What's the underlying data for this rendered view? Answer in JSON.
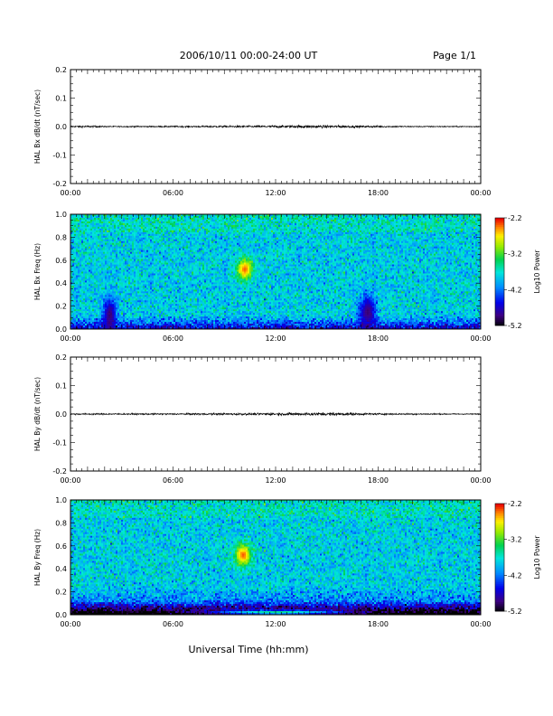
{
  "header": {
    "title": "2006/10/11   00:00-24:00 UT",
    "page": "Page 1/1"
  },
  "chart_data": [
    {
      "type": "line",
      "panel": "bx-dbdt",
      "ylabel": "HAL Bx dB/dt (nT/sec)",
      "ylim": [
        -0.2,
        0.2
      ],
      "y_ticks": [
        "0.2",
        "0.1",
        "0.0",
        "-0.1",
        "-0.2"
      ],
      "x_ticks": [
        "00:00",
        "06:00",
        "12:00",
        "18:00",
        "00:00"
      ],
      "xlim_hours": [
        0,
        24
      ],
      "series": [
        {
          "x_hours": [
            0,
            1,
            2,
            3,
            4,
            5,
            6,
            7,
            8,
            9,
            10,
            11,
            12,
            13,
            14,
            15,
            16,
            17,
            18,
            19,
            20,
            21,
            22,
            23,
            24
          ],
          "noise_amplitude": [
            0.004,
            0.006,
            0.003,
            0.003,
            0.004,
            0.003,
            0.004,
            0.004,
            0.005,
            0.005,
            0.006,
            0.006,
            0.007,
            0.008,
            0.009,
            0.008,
            0.007,
            0.006,
            0.005,
            0.004,
            0.003,
            0.003,
            0.003,
            0.003,
            0.003
          ],
          "color": "#000000"
        }
      ]
    },
    {
      "type": "heatmap",
      "panel": "bx-freq",
      "ylabel": "HAL Bx Freq (Hz)",
      "ylim": [
        0.0,
        1.0
      ],
      "y_ticks": [
        "1.0",
        "0.8",
        "0.6",
        "0.4",
        "0.2",
        "0.0"
      ],
      "x_ticks": [
        "00:00",
        "06:00",
        "12:00",
        "18:00",
        "00:00"
      ],
      "xlim_hours": [
        0,
        24
      ],
      "colorbar": {
        "label": "Log10 Power",
        "ticks": [
          "-2.2",
          "-3.2",
          "-4.2",
          "-5.2"
        ],
        "range": [
          -5.2,
          -2.2
        ]
      },
      "base_level": -3.8,
      "features": [
        {
          "t_hours": 10.2,
          "f_hz": 0.52,
          "dt": 0.45,
          "df": 0.09,
          "level": -2.3
        },
        {
          "t_hours": 2.3,
          "f_hz": 0.12,
          "dt": 0.4,
          "df": 0.15,
          "level": -5.0
        },
        {
          "t_hours": 17.4,
          "f_hz": 0.15,
          "dt": 0.5,
          "df": 0.15,
          "level": -5.0
        }
      ]
    },
    {
      "type": "line",
      "panel": "by-dbdt",
      "ylabel": "HAL By dB/dt (nT/sec)",
      "ylim": [
        -0.2,
        0.2
      ],
      "y_ticks": [
        "0.2",
        "0.1",
        "0.0",
        "-0.1",
        "-0.2"
      ],
      "x_ticks": [
        "00:00",
        "06:00",
        "12:00",
        "18:00",
        "00:00"
      ],
      "xlim_hours": [
        0,
        24
      ],
      "series": [
        {
          "x_hours": [
            0,
            1,
            2,
            3,
            4,
            5,
            6,
            7,
            8,
            9,
            10,
            11,
            12,
            13,
            14,
            15,
            16,
            17,
            18,
            19,
            20,
            21,
            22,
            23,
            24
          ],
          "noise_amplitude": [
            0.004,
            0.005,
            0.004,
            0.004,
            0.004,
            0.004,
            0.004,
            0.005,
            0.005,
            0.005,
            0.006,
            0.006,
            0.007,
            0.008,
            0.009,
            0.009,
            0.007,
            0.006,
            0.005,
            0.004,
            0.004,
            0.004,
            0.003,
            0.003,
            0.003
          ],
          "color": "#000000"
        }
      ]
    },
    {
      "type": "heatmap",
      "panel": "by-freq",
      "ylabel": "HAL By Freq (Hz)",
      "ylim": [
        0.0,
        1.0
      ],
      "y_ticks": [
        "1.0",
        "0.8",
        "0.6",
        "0.4",
        "0.2",
        "0.0"
      ],
      "x_ticks": [
        "00:00",
        "06:00",
        "12:00",
        "18:00",
        "00:00"
      ],
      "xlim_hours": [
        0,
        24
      ],
      "colorbar": {
        "label": "Log10 Power",
        "ticks": [
          "-2.2",
          "-3.2",
          "-4.2",
          "-5.2"
        ],
        "range": [
          -5.2,
          -2.2
        ]
      },
      "base_level": -3.8,
      "features": [
        {
          "t_hours": 10.1,
          "f_hz": 0.52,
          "dt": 0.45,
          "df": 0.09,
          "level": -2.3
        },
        {
          "t_hours": 12.0,
          "f_hz": 0.02,
          "dt": 4.0,
          "df": 0.02,
          "level": -3.4
        }
      ]
    }
  ],
  "xlabel": "Universal Time (hh:mm)"
}
